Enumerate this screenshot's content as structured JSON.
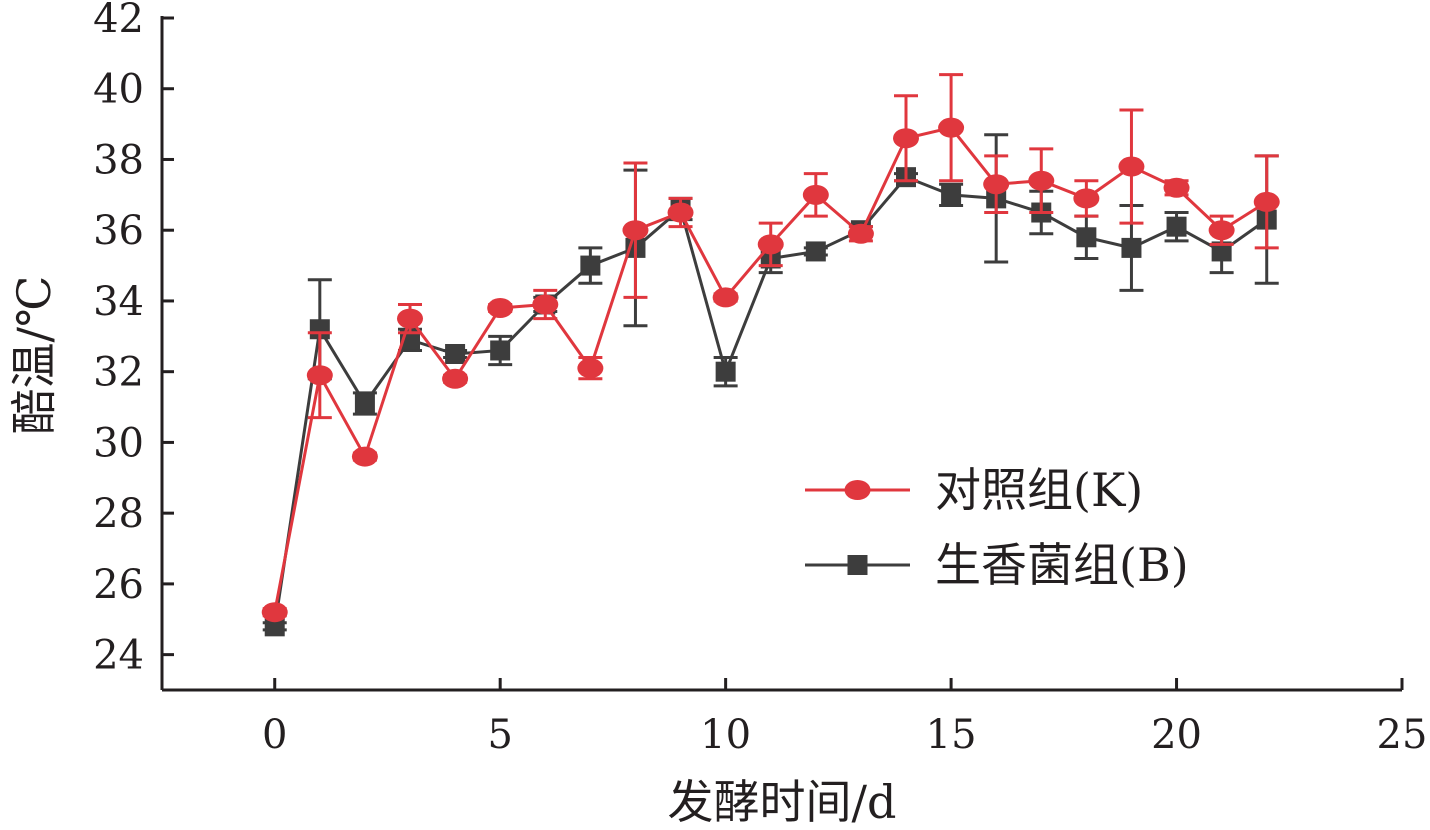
{
  "chart_data": {
    "type": "line",
    "xlabel": "发酵时间/d",
    "ylabel": "醅温/℃",
    "xlim": [
      -2.5,
      25
    ],
    "ylim": [
      23,
      42
    ],
    "xticks": [
      0,
      5,
      10,
      15,
      20,
      25
    ],
    "yticks": [
      24,
      26,
      28,
      30,
      32,
      34,
      36,
      38,
      40,
      42
    ],
    "grid": false,
    "legend_position": "center-right",
    "x": [
      0,
      1,
      2,
      3,
      4,
      5,
      6,
      7,
      8,
      9,
      10,
      11,
      12,
      13,
      14,
      15,
      16,
      17,
      18,
      19,
      20,
      21,
      22
    ],
    "series": [
      {
        "name": "对照组(K)",
        "color": "#e0373e",
        "marker": "circle",
        "values": [
          25.2,
          31.9,
          29.6,
          33.5,
          31.8,
          33.8,
          33.9,
          32.1,
          36.0,
          36.5,
          34.1,
          35.6,
          37.0,
          35.9,
          38.6,
          38.9,
          37.3,
          37.4,
          36.9,
          37.8,
          37.2,
          36.0,
          36.8
        ],
        "errors": [
          0.1,
          1.2,
          0.1,
          0.4,
          0.1,
          0.1,
          0.4,
          0.3,
          1.9,
          0.4,
          0.1,
          0.6,
          0.6,
          0.2,
          1.2,
          1.5,
          0.8,
          0.9,
          0.5,
          1.6,
          0.2,
          0.4,
          1.3
        ]
      },
      {
        "name": "生香菌组(B)",
        "color": "#3d3d3d",
        "marker": "square",
        "values": [
          24.8,
          33.2,
          31.1,
          32.9,
          32.5,
          32.6,
          33.9,
          35.0,
          35.5,
          36.6,
          32.0,
          35.2,
          35.4,
          36.0,
          37.5,
          37.0,
          36.9,
          36.5,
          35.8,
          35.5,
          36.1,
          35.4,
          36.3
        ],
        "errors": [
          0.1,
          1.4,
          0.3,
          0.3,
          0.1,
          0.4,
          0.2,
          0.5,
          2.2,
          0.3,
          0.4,
          0.4,
          0.1,
          0.1,
          0.1,
          0.3,
          1.8,
          0.6,
          0.6,
          1.2,
          0.4,
          0.6,
          1.8
        ]
      }
    ]
  }
}
